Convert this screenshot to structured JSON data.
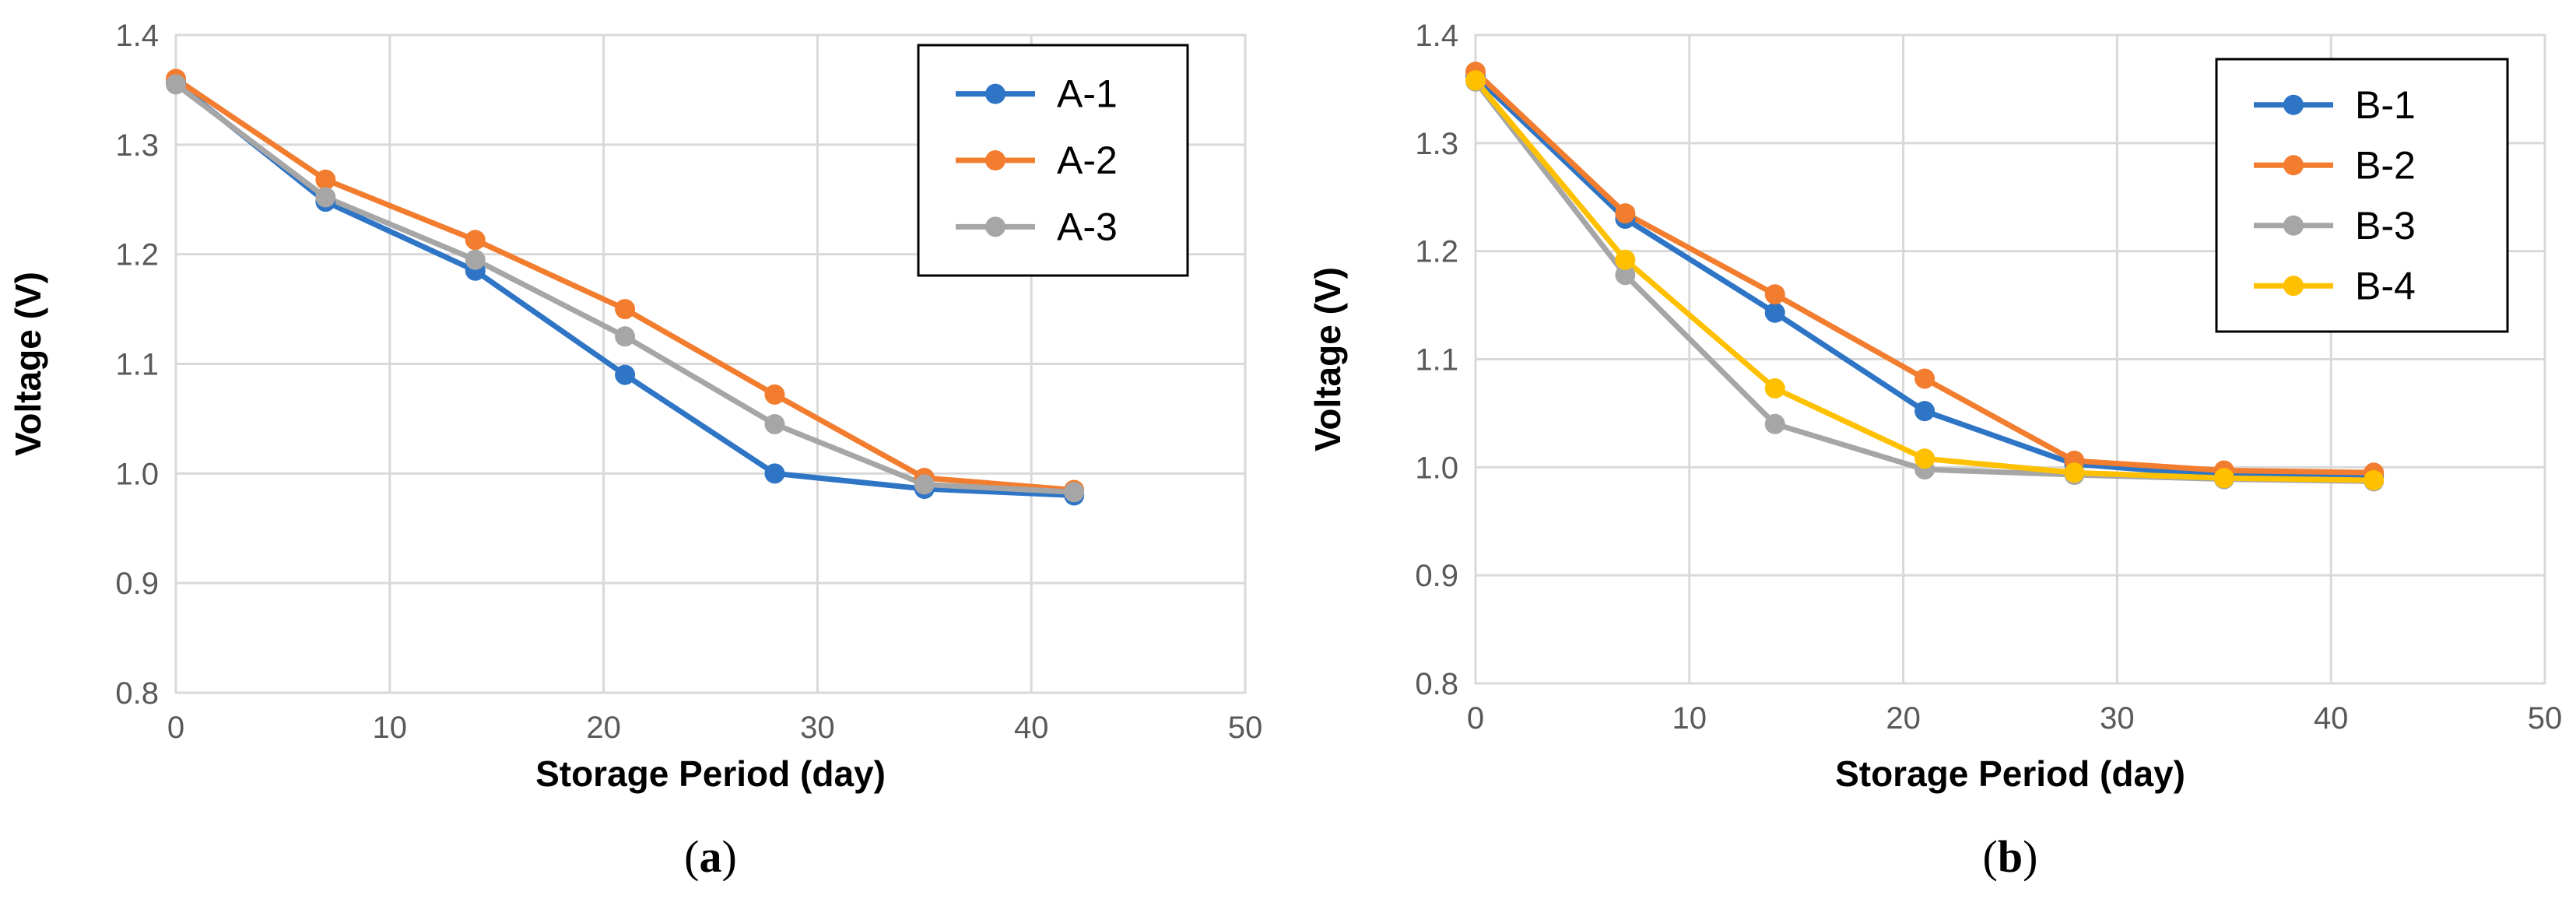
{
  "chart_data": [
    {
      "type": "line",
      "caption": "(a)",
      "caption_letter": "a",
      "xlabel": "Storage Period (day)",
      "ylabel": "Voltage (V)",
      "xlim": [
        0,
        50
      ],
      "ylim": [
        0.8,
        1.4
      ],
      "xticks": [
        "0",
        "10",
        "20",
        "30",
        "40",
        "50"
      ],
      "yticks": [
        "0.8",
        "0.9",
        "1.0",
        "1.1",
        "1.2",
        "1.3",
        "1.4"
      ],
      "grid": true,
      "legend_position": "top-right",
      "x": [
        0,
        7,
        14,
        21,
        28,
        35,
        42
      ],
      "series": [
        {
          "name": "A-1",
          "color": "#2e75c6",
          "values": [
            1.357,
            1.248,
            1.185,
            1.09,
            1.0,
            0.986,
            0.98
          ]
        },
        {
          "name": "A-2",
          "color": "#f27d2f",
          "values": [
            1.36,
            1.268,
            1.213,
            1.15,
            1.072,
            0.996,
            0.985
          ]
        },
        {
          "name": "A-3",
          "color": "#a6a6a6",
          "values": [
            1.355,
            1.252,
            1.195,
            1.125,
            1.045,
            0.99,
            0.983
          ]
        }
      ]
    },
    {
      "type": "line",
      "caption": "(b)",
      "caption_letter": "b",
      "xlabel": "Storage Period (day)",
      "ylabel": "Voltage (V)",
      "xlim": [
        0,
        50
      ],
      "ylim": [
        0.8,
        1.4
      ],
      "xticks": [
        "0",
        "10",
        "20",
        "30",
        "40",
        "50"
      ],
      "yticks": [
        "0.8",
        "0.9",
        "1.0",
        "1.1",
        "1.2",
        "1.3",
        "1.4"
      ],
      "grid": true,
      "legend_position": "top-right",
      "x": [
        0,
        7,
        14,
        21,
        28,
        35,
        42
      ],
      "series": [
        {
          "name": "B-1",
          "color": "#2e75c6",
          "values": [
            1.362,
            1.23,
            1.143,
            1.052,
            1.003,
            0.992,
            0.992
          ]
        },
        {
          "name": "B-2",
          "color": "#f27d2f",
          "values": [
            1.366,
            1.235,
            1.16,
            1.082,
            1.006,
            0.997,
            0.995
          ]
        },
        {
          "name": "B-3",
          "color": "#a6a6a6",
          "values": [
            1.357,
            1.178,
            1.04,
            0.998,
            0.993,
            0.989,
            0.987
          ]
        },
        {
          "name": "B-4",
          "color": "#ffc000",
          "values": [
            1.358,
            1.192,
            1.073,
            1.008,
            0.995,
            0.99,
            0.988
          ]
        }
      ]
    }
  ]
}
